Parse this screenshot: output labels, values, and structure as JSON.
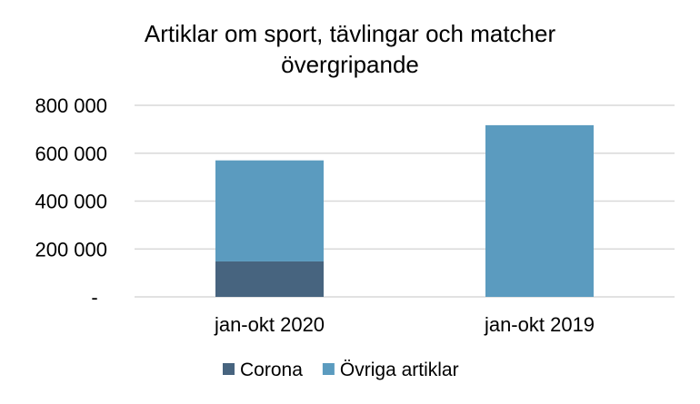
{
  "chart_data": {
    "type": "bar",
    "stacked": true,
    "title_lines": [
      "Artiklar om sport, tävlingar och matcher",
      "övergripande"
    ],
    "categories": [
      "jan-okt 2020",
      "jan-okt 2019"
    ],
    "series": [
      {
        "name": "Corona",
        "values": [
          148000,
          0
        ],
        "color": "#47647f"
      },
      {
        "name": "Övriga artiklar",
        "values": [
          422000,
          717000
        ],
        "color": "#5b9bbf"
      }
    ],
    "ylim": [
      0,
      800000
    ],
    "yticks": [
      0,
      200000,
      400000,
      600000,
      800000
    ],
    "ytick_labels": [
      "-",
      "200 000",
      "400 000",
      "600 000",
      "800 000"
    ],
    "grid": true,
    "legend_position": "bottom"
  }
}
